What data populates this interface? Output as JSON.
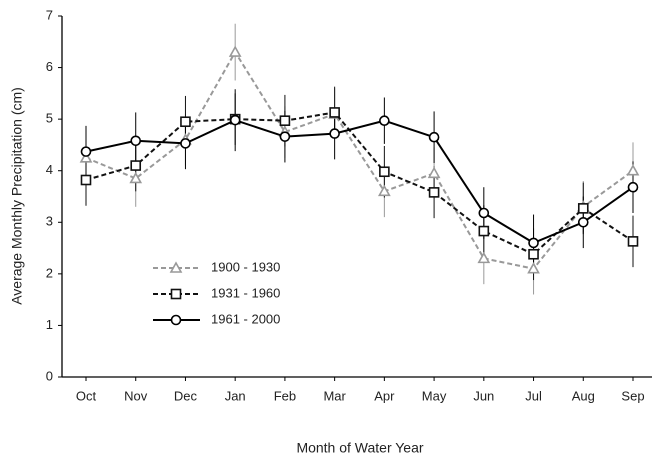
{
  "chart_data": {
    "type": "line",
    "x_label": "Month of Water Year",
    "y_label": "Average Monthly Precipitation (cm)",
    "categories": [
      "Oct",
      "Nov",
      "Dec",
      "Jan",
      "Feb",
      "Mar",
      "Apr",
      "May",
      "Jun",
      "Jul",
      "Aug",
      "Sep"
    ],
    "ylim": [
      0,
      7
    ],
    "yticks": [
      0,
      1,
      2,
      3,
      4,
      5,
      6,
      7
    ],
    "legend": "lower left",
    "series": [
      {
        "name": "1900 - 1930",
        "color": "#999999",
        "dashed": true,
        "marker": "triangle",
        "values": [
          4.25,
          3.85,
          4.6,
          6.3,
          4.75,
          5.1,
          3.6,
          3.95,
          2.3,
          2.1,
          3.3,
          4.0
        ],
        "errors": [
          0.5,
          0.55,
          0.5,
          0.55,
          0.5,
          0.5,
          0.5,
          0.5,
          0.5,
          0.5,
          0.5,
          0.55
        ]
      },
      {
        "name": "1931 - 1960",
        "color": "#111111",
        "dashed": true,
        "marker": "square",
        "values": [
          3.82,
          4.1,
          4.95,
          5.0,
          4.97,
          5.13,
          3.98,
          3.58,
          2.83,
          2.38,
          3.27,
          2.63
        ],
        "errors": [
          0.5,
          0.5,
          0.5,
          0.5,
          0.5,
          0.5,
          0.5,
          0.5,
          0.5,
          0.5,
          0.5,
          0.5
        ]
      },
      {
        "name": "1961 - 2000",
        "color": "#000000",
        "dashed": false,
        "marker": "circle",
        "values": [
          4.37,
          4.58,
          4.53,
          4.98,
          4.66,
          4.72,
          4.97,
          4.65,
          3.18,
          2.6,
          3.0,
          3.68
        ],
        "errors": [
          0.5,
          0.55,
          0.5,
          0.6,
          0.5,
          0.5,
          0.45,
          0.5,
          0.5,
          0.55,
          0.5,
          0.5
        ]
      }
    ]
  }
}
